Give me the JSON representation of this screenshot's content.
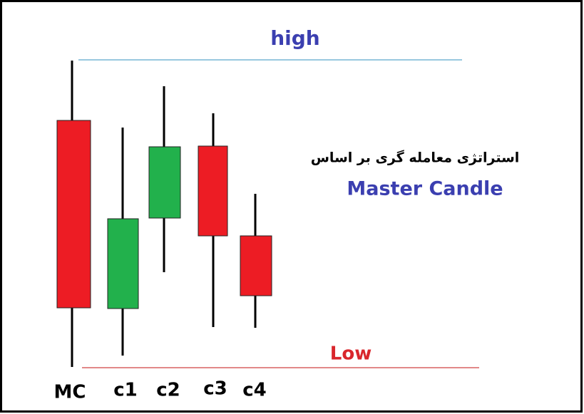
{
  "title": "high",
  "low_label": "Low",
  "caption": {
    "persian": "استراتژی معامله گری بر اساس",
    "english": "Master Candle"
  },
  "candles": [
    {
      "label": "MC"
    },
    {
      "label": "c1"
    },
    {
      "label": "c2"
    },
    {
      "label": "c3"
    },
    {
      "label": "c4"
    }
  ]
}
